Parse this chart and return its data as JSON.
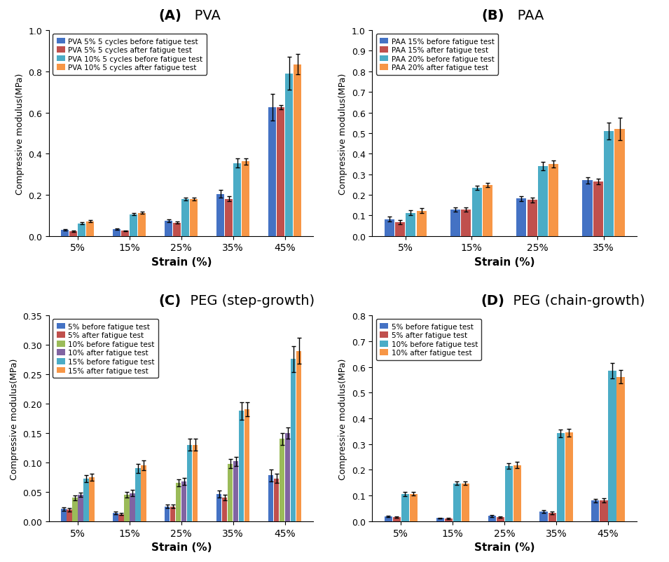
{
  "A": {
    "title_bold": "(A)",
    "title_rest": "   PVA",
    "categories": [
      "5%",
      "15%",
      "25%",
      "35%",
      "45%"
    ],
    "ylabel": "Compressive modulus(MPa)",
    "xlabel": "Strain (%)",
    "ylim": [
      0,
      1.0
    ],
    "yticks": [
      0,
      0.2,
      0.4,
      0.6,
      0.8,
      1.0
    ],
    "series": [
      {
        "label": "PVA 5% 5 cycles before fatigue test",
        "color": "#4472C4",
        "values": [
          0.03,
          0.033,
          0.075,
          0.205,
          0.625
        ],
        "errors": [
          0.003,
          0.003,
          0.007,
          0.02,
          0.065
        ]
      },
      {
        "label": "PVA 5% 5 cycles after fatigue test",
        "color": "#C0504D",
        "values": [
          0.022,
          0.025,
          0.065,
          0.18,
          0.625
        ],
        "errors": [
          0.003,
          0.003,
          0.006,
          0.012,
          0.01
        ]
      },
      {
        "label": "PVA 10% 5 cycles before fatigue test",
        "color": "#4BACC6",
        "values": [
          0.062,
          0.105,
          0.18,
          0.355,
          0.79
        ],
        "errors": [
          0.004,
          0.005,
          0.008,
          0.022,
          0.08
        ]
      },
      {
        "label": "PVA 10% 5 cycles after fatigue test",
        "color": "#F79646",
        "values": [
          0.072,
          0.112,
          0.18,
          0.362,
          0.835
        ],
        "errors": [
          0.004,
          0.005,
          0.008,
          0.015,
          0.05
        ]
      }
    ]
  },
  "B": {
    "title_bold": "(B)",
    "title_rest": "   PAA",
    "categories": [
      "5%",
      "15%",
      "25%",
      "35%"
    ],
    "ylabel": "Compressive modulus(MPa)",
    "xlabel": "Strain (%)",
    "ylim": [
      0,
      1.0
    ],
    "yticks": [
      0,
      0.1,
      0.2,
      0.3,
      0.4,
      0.5,
      0.6,
      0.7,
      0.8,
      0.9,
      1.0
    ],
    "series": [
      {
        "label": "PAA 15% before fatigue test",
        "color": "#4472C4",
        "values": [
          0.082,
          0.128,
          0.182,
          0.27
        ],
        "errors": [
          0.012,
          0.01,
          0.012,
          0.015
        ]
      },
      {
        "label": "PAA 15% after fatigue test",
        "color": "#C0504D",
        "values": [
          0.068,
          0.128,
          0.175,
          0.265
        ],
        "errors": [
          0.01,
          0.01,
          0.012,
          0.015
        ]
      },
      {
        "label": "PAA 20% before fatigue test",
        "color": "#4BACC6",
        "values": [
          0.112,
          0.235,
          0.34,
          0.51
        ],
        "errors": [
          0.012,
          0.01,
          0.02,
          0.04
        ]
      },
      {
        "label": "PAA 20% after fatigue test",
        "color": "#F79646",
        "values": [
          0.122,
          0.248,
          0.35,
          0.52
        ],
        "errors": [
          0.012,
          0.01,
          0.018,
          0.055
        ]
      }
    ]
  },
  "C": {
    "title_bold": "(C)",
    "title_rest": "  PEG (step-growth)",
    "categories": [
      "5%",
      "15%",
      "25%",
      "35%",
      "45%"
    ],
    "ylabel": "Compressive modulus(MPa)",
    "xlabel": "Strain (%)",
    "ylim": [
      0,
      0.35
    ],
    "yticks": [
      0,
      0.05,
      0.1,
      0.15,
      0.2,
      0.25,
      0.3,
      0.35
    ],
    "series": [
      {
        "label": "5% before fatigue test",
        "color": "#4472C4",
        "values": [
          0.021,
          0.014,
          0.025,
          0.046,
          0.078
        ],
        "errors": [
          0.003,
          0.002,
          0.003,
          0.006,
          0.01
        ]
      },
      {
        "label": "5% after fatigue test",
        "color": "#C0504D",
        "values": [
          0.02,
          0.012,
          0.025,
          0.04,
          0.073
        ],
        "errors": [
          0.003,
          0.002,
          0.003,
          0.005,
          0.008
        ]
      },
      {
        "label": "10% before fatigue test",
        "color": "#9BBB59",
        "values": [
          0.04,
          0.045,
          0.065,
          0.098,
          0.14
        ],
        "errors": [
          0.004,
          0.005,
          0.006,
          0.008,
          0.01
        ]
      },
      {
        "label": "10% after fatigue test",
        "color": "#8064A2",
        "values": [
          0.045,
          0.048,
          0.068,
          0.102,
          0.15
        ],
        "errors": [
          0.004,
          0.005,
          0.006,
          0.008,
          0.01
        ]
      },
      {
        "label": "15% before fatigue test",
        "color": "#4BACC6",
        "values": [
          0.073,
          0.09,
          0.13,
          0.188,
          0.276
        ],
        "errors": [
          0.006,
          0.008,
          0.01,
          0.015,
          0.022
        ]
      },
      {
        "label": "15% after fatigue test",
        "color": "#F79646",
        "values": [
          0.075,
          0.095,
          0.13,
          0.19,
          0.29
        ],
        "errors": [
          0.006,
          0.008,
          0.01,
          0.012,
          0.022
        ]
      }
    ]
  },
  "D": {
    "title_bold": "(D)",
    "title_rest": "  PEG (chain-growth)",
    "categories": [
      "5%",
      "15%",
      "25%",
      "35%",
      "45%"
    ],
    "ylabel": "Compressive modulus(MPa)",
    "xlabel": "Strain (%)",
    "ylim": [
      0,
      0.8
    ],
    "yticks": [
      0,
      0.1,
      0.2,
      0.3,
      0.4,
      0.5,
      0.6,
      0.7,
      0.8
    ],
    "series": [
      {
        "label": "5% before fatigue test",
        "color": "#4472C4",
        "values": [
          0.018,
          0.012,
          0.02,
          0.038,
          0.08
        ],
        "errors": [
          0.003,
          0.002,
          0.003,
          0.005,
          0.008
        ]
      },
      {
        "label": "5% after fatigue test",
        "color": "#C0504D",
        "values": [
          0.015,
          0.01,
          0.015,
          0.032,
          0.082
        ],
        "errors": [
          0.003,
          0.002,
          0.003,
          0.005,
          0.008
        ]
      },
      {
        "label": "10% before fatigue test",
        "color": "#4BACC6",
        "values": [
          0.105,
          0.148,
          0.215,
          0.342,
          0.585
        ],
        "errors": [
          0.008,
          0.008,
          0.012,
          0.015,
          0.03
        ]
      },
      {
        "label": "10% after fatigue test",
        "color": "#F79646",
        "values": [
          0.107,
          0.148,
          0.218,
          0.345,
          0.562
        ],
        "errors": [
          0.008,
          0.008,
          0.012,
          0.015,
          0.025
        ]
      }
    ]
  }
}
